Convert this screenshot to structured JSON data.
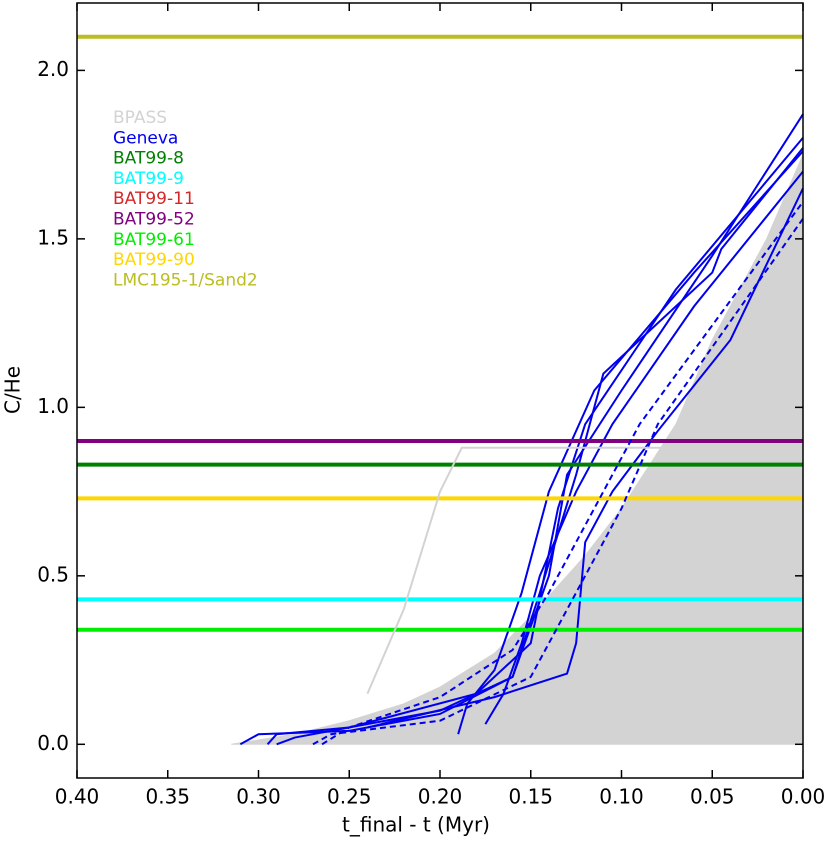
{
  "chart_data": {
    "type": "line",
    "xlabel": "t_final - t (Myr)",
    "ylabel": "C/He",
    "xlim": [
      0.4,
      0.0
    ],
    "ylim": [
      -0.1,
      2.2
    ],
    "xticks": [
      {
        "value": 0.4,
        "label": "0.40"
      },
      0.35,
      {
        "value": 0.3,
        "label": "0.30"
      },
      0.25,
      {
        "value": 0.2,
        "label": "0.20"
      },
      0.15,
      {
        "value": 0.1,
        "label": "0.10"
      },
      0.05,
      {
        "value": 0.0,
        "label": "0.00"
      }
    ],
    "yticks": [
      {
        "value": 0.0,
        "label": "0.0"
      },
      0.5,
      {
        "value": 1.0,
        "label": "1.0"
      },
      1.5,
      {
        "value": 2.0,
        "label": "2.0"
      }
    ],
    "series": [
      {
        "name": "BPASS",
        "color": "#d3d3d3",
        "fill": true,
        "x": [
          0.315,
          0.28,
          0.25,
          0.22,
          0.2,
          0.17,
          0.15,
          0.12,
          0.1,
          0.07,
          0.05,
          0.02,
          0.0,
          0.0
        ],
        "values": [
          0.0,
          0.03,
          0.07,
          0.12,
          0.17,
          0.27,
          0.38,
          0.56,
          0.7,
          0.95,
          1.2,
          1.5,
          1.75,
          0.0
        ]
      },
      {
        "name": "Geneva",
        "color": "#0000ee",
        "x": [
          0.31,
          0.3,
          0.25,
          0.2,
          0.16,
          0.14,
          0.13,
          0.1,
          0.05,
          0.0,
          null,
          0.295,
          0.29,
          0.25,
          0.18,
          0.15,
          0.135,
          0.12,
          0.07,
          0.0,
          null,
          0.29,
          0.28,
          0.2,
          0.16,
          0.145,
          0.125,
          0.11,
          0.05,
          0.045,
          0.0,
          null,
          0.19,
          0.185,
          0.17,
          0.155,
          0.14,
          0.115,
          0.06,
          0.0,
          null,
          0.175,
          0.165,
          0.155,
          0.145,
          0.125,
          0.105,
          0.06,
          0.0,
          null,
          0.24,
          0.17,
          0.13,
          0.125,
          0.12,
          0.105,
          0.08,
          0.04,
          0.0
        ],
        "values": [
          0.0,
          0.03,
          0.04,
          0.09,
          0.2,
          0.5,
          0.8,
          1.05,
          1.45,
          1.87,
          null,
          0.0,
          0.03,
          0.05,
          0.15,
          0.3,
          0.7,
          0.95,
          1.35,
          1.8,
          null,
          0.0,
          0.02,
          0.1,
          0.2,
          0.45,
          0.8,
          1.1,
          1.4,
          1.47,
          1.77,
          null,
          0.03,
          0.12,
          0.22,
          0.45,
          0.75,
          1.05,
          1.4,
          1.76,
          null,
          0.06,
          0.15,
          0.3,
          0.5,
          0.75,
          0.95,
          1.3,
          1.7,
          null,
          0.05,
          0.14,
          0.21,
          0.3,
          0.6,
          0.75,
          0.93,
          1.2,
          1.65
        ]
      },
      {
        "name": "BAT99-8",
        "color": "#008000",
        "x": [
          0.4,
          0.0
        ],
        "values": [
          0.83,
          0.83
        ]
      },
      {
        "name": "BAT99-9",
        "color": "#00ffff",
        "x": [
          0.4,
          0.0
        ],
        "values": [
          0.43,
          0.43
        ]
      },
      {
        "name": "BAT99-11",
        "color": "#d62728",
        "x": [],
        "values": []
      },
      {
        "name": "BAT99-52",
        "color": "#800080",
        "x": [
          0.4,
          0.0
        ],
        "values": [
          0.9,
          0.9
        ]
      },
      {
        "name": "BAT99-61",
        "color": "#00ee00",
        "x": [
          0.4,
          0.0
        ],
        "values": [
          0.34,
          0.34
        ]
      },
      {
        "name": "BAT99-90",
        "color": "#ffd700",
        "x": [
          0.4,
          0.0
        ],
        "values": [
          0.73,
          0.73
        ]
      },
      {
        "name": "LMC195-1/Sand2",
        "color": "#bcbd22",
        "x": [
          0.4,
          0.0
        ],
        "values": [
          2.1,
          2.1
        ]
      },
      {
        "color": "#d3d3d3",
        "x": [
          0.24,
          0.22,
          0.2,
          0.188,
          0.0
        ],
        "values": [
          0.15,
          0.4,
          0.75,
          0.88,
          0.88
        ]
      },
      {
        "color": "#0000ee",
        "dashed": true,
        "x": [
          0.27,
          0.26,
          0.2,
          0.15,
          0.125,
          0.1,
          0.08,
          0.0,
          null,
          0.265,
          0.25,
          0.2,
          0.16,
          0.14,
          0.115,
          0.09,
          0.0
        ],
        "values": [
          0.0,
          0.03,
          0.07,
          0.2,
          0.45,
          0.7,
          0.95,
          1.56,
          null,
          0.0,
          0.05,
          0.14,
          0.28,
          0.45,
          0.7,
          0.95,
          1.61
        ]
      }
    ]
  }
}
